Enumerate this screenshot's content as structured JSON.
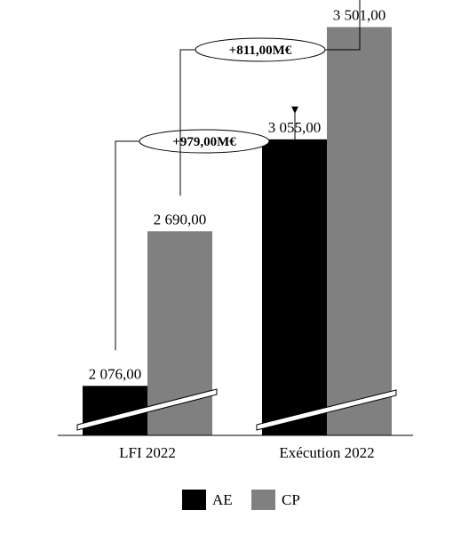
{
  "chart_data": {
    "type": "bar",
    "categories": [
      "LFI 2022",
      "Exécution 2022"
    ],
    "series": [
      {
        "name": "AE",
        "values": [
          2076.0,
          3055.0
        ],
        "labels": [
          "2 076,00",
          "3 055,00"
        ],
        "color": "#000000"
      },
      {
        "name": "CP",
        "values": [
          2690.0,
          3501.0
        ],
        "labels": [
          "2 690,00",
          "3 501,00"
        ],
        "color": "#808080"
      }
    ],
    "axis_break": true,
    "annotations": [
      {
        "text": "+979,00M€",
        "from_series": "AE",
        "from_category": "LFI 2022",
        "to_series": "AE",
        "to_category": "Exécution 2022"
      },
      {
        "text": "+811,00M€",
        "from_series": "CP",
        "from_category": "LFI 2022",
        "to_series": "CP",
        "to_category": "Exécution 2022"
      }
    ],
    "legend_position": "bottom-center",
    "grid": false,
    "title": "",
    "xlabel": "",
    "ylabel": ""
  }
}
